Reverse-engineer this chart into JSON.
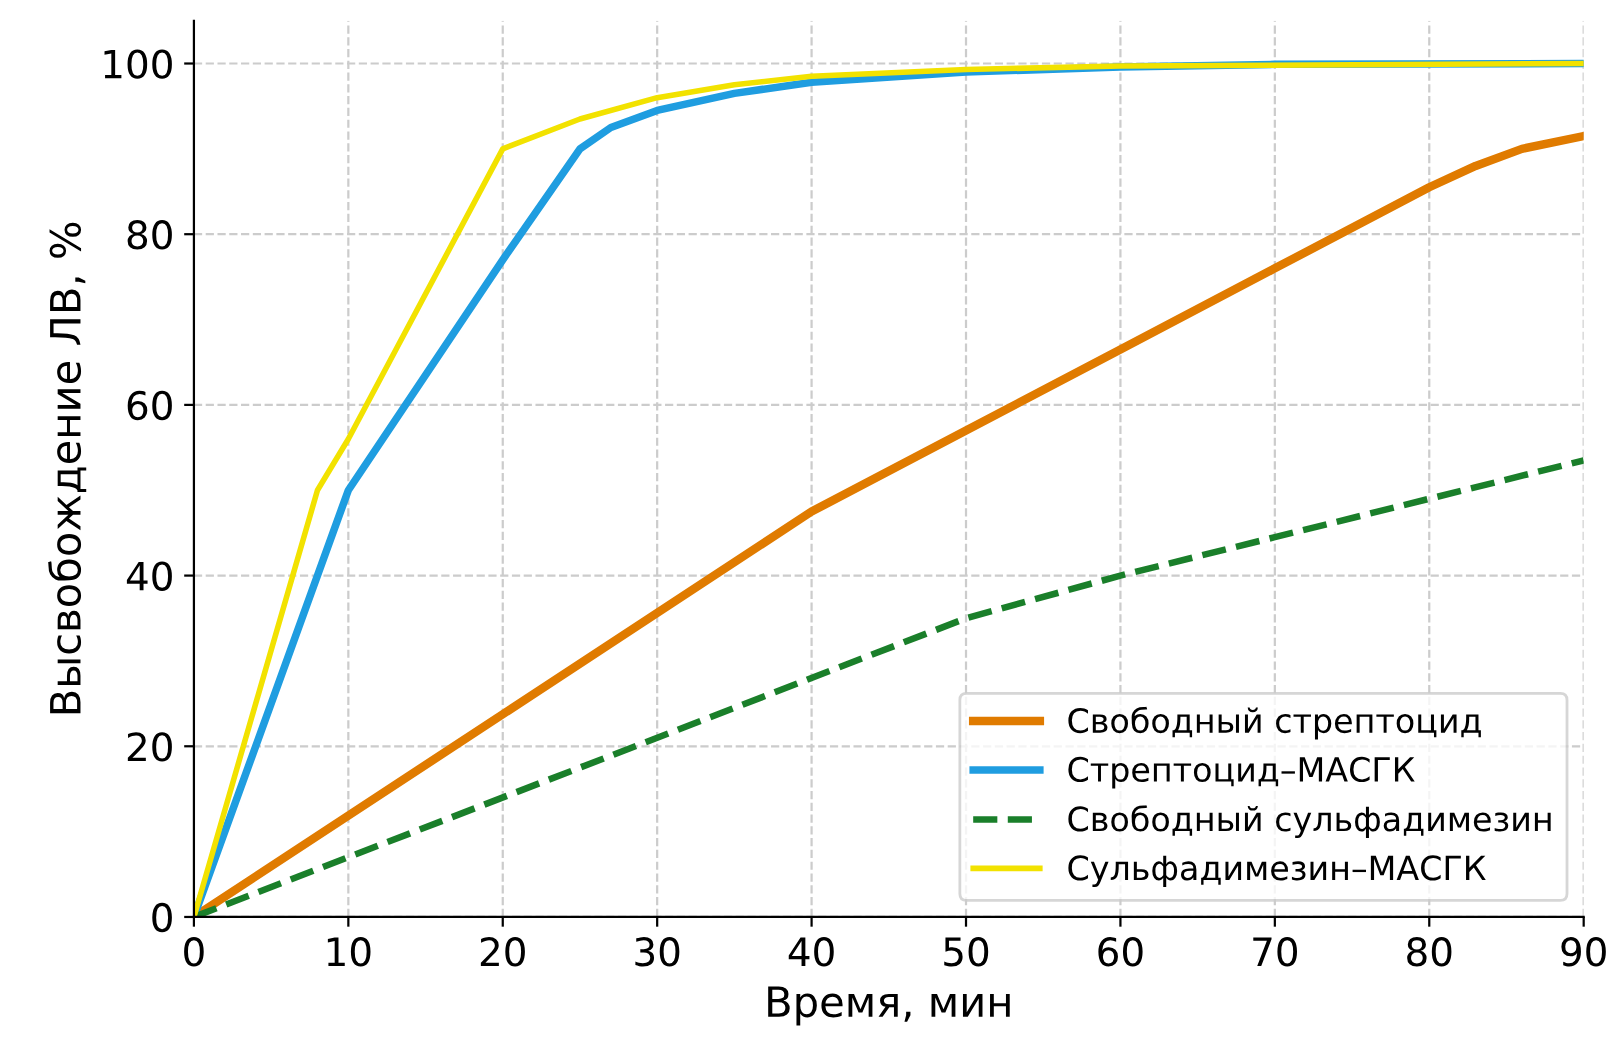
{
  "chart_data": {
    "type": "line",
    "xlabel": "Время, мин",
    "ylabel": "Высвобождение ЛВ, %",
    "xlim": [
      0,
      90
    ],
    "ylim": [
      0,
      105
    ],
    "xticks": [
      0,
      10,
      20,
      30,
      40,
      50,
      60,
      70,
      80,
      90
    ],
    "yticks": [
      0,
      20,
      40,
      60,
      80,
      100
    ],
    "grid": true,
    "legend": "bottom right",
    "marker": "none",
    "series": [
      {
        "name": "Свободный стрептоцид",
        "color": "#e07b00",
        "line_style": "solid",
        "x": [
          0,
          40,
          50,
          60,
          70,
          80,
          83,
          86,
          90
        ],
        "values": [
          0,
          47.5,
          57,
          66.5,
          76,
          85.5,
          88,
          90,
          91.5
        ]
      },
      {
        "name": "Стрептоцид–МАСГК",
        "color": "#1f9de0",
        "line_style": "solid",
        "x": [
          0,
          10,
          20,
          25,
          27,
          30,
          35,
          40,
          50,
          60,
          70,
          90
        ],
        "values": [
          0,
          50,
          77,
          90,
          92.5,
          94.5,
          96.5,
          97.8,
          99,
          99.6,
          99.9,
          100
        ]
      },
      {
        "name": "Свободный сульфадимезин",
        "color": "#1a7f2a",
        "line_style": "dashed",
        "x": [
          0,
          50,
          60,
          70,
          80,
          90
        ],
        "values": [
          0,
          35,
          40,
          44.5,
          49,
          53.5
        ]
      },
      {
        "name": "Сульфадимезин–МАСГК",
        "color": "#f2e200",
        "line_style": "solid",
        "x": [
          0,
          8,
          10,
          20,
          25,
          30,
          35,
          40,
          50,
          60,
          90
        ],
        "values": [
          0,
          50,
          56,
          90,
          93.5,
          96,
          97.5,
          98.5,
          99.3,
          99.7,
          100
        ]
      }
    ]
  }
}
